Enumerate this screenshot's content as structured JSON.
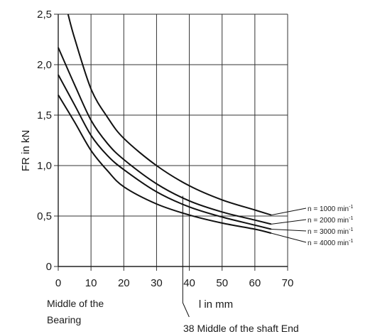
{
  "chart_data": {
    "type": "line",
    "xlabel": "l in mm",
    "ylabel": "FR in kN",
    "xlim": [
      0,
      70
    ],
    "ylim": [
      0,
      2.5
    ],
    "x_ticks": [
      "0",
      "10",
      "20",
      "30",
      "40",
      "50",
      "60",
      "70"
    ],
    "y_ticks": [
      "0",
      "0,5",
      "1,0",
      "1,5",
      "2,0",
      "2,5"
    ],
    "grid": true,
    "legend_placement": "right",
    "series": [
      {
        "name": "n = 1000 min-1",
        "label_base": "n = 1000 min",
        "label_exp": "-1",
        "points": [
          [
            3,
            2.5
          ],
          [
            5,
            2.26
          ],
          [
            10,
            1.76
          ],
          [
            15,
            1.48
          ],
          [
            20,
            1.27
          ],
          [
            30,
            1.0
          ],
          [
            40,
            0.8
          ],
          [
            50,
            0.66
          ],
          [
            60,
            0.56
          ],
          [
            65,
            0.51
          ]
        ]
      },
      {
        "name": "n = 2000 min-1",
        "label_base": "n = 2000 min",
        "label_exp": "-1",
        "points": [
          [
            0,
            2.17
          ],
          [
            5,
            1.8
          ],
          [
            10,
            1.45
          ],
          [
            15,
            1.22
          ],
          [
            20,
            1.06
          ],
          [
            30,
            0.82
          ],
          [
            40,
            0.65
          ],
          [
            50,
            0.54
          ],
          [
            60,
            0.46
          ],
          [
            65,
            0.42
          ]
        ]
      },
      {
        "name": "n = 3000 min-1",
        "label_base": "n = 3000 min",
        "label_exp": "-1",
        "points": [
          [
            0,
            1.9
          ],
          [
            5,
            1.6
          ],
          [
            10,
            1.3
          ],
          [
            15,
            1.1
          ],
          [
            20,
            0.96
          ],
          [
            30,
            0.74
          ],
          [
            40,
            0.59
          ],
          [
            50,
            0.49
          ],
          [
            60,
            0.41
          ],
          [
            65,
            0.37
          ]
        ]
      },
      {
        "name": "n = 4000 min-1",
        "label_base": "n = 4000 min",
        "label_exp": "-1",
        "points": [
          [
            0,
            1.7
          ],
          [
            5,
            1.43
          ],
          [
            10,
            1.15
          ],
          [
            15,
            0.95
          ],
          [
            20,
            0.79
          ],
          [
            30,
            0.62
          ],
          [
            40,
            0.51
          ],
          [
            50,
            0.43
          ],
          [
            60,
            0.37
          ],
          [
            65,
            0.33
          ]
        ]
      }
    ],
    "marker": {
      "x": 38,
      "y_top": 0.7,
      "label": "38 Middle of the shaft End"
    },
    "annotation_left": [
      "Middle of the",
      "Bearing"
    ]
  }
}
